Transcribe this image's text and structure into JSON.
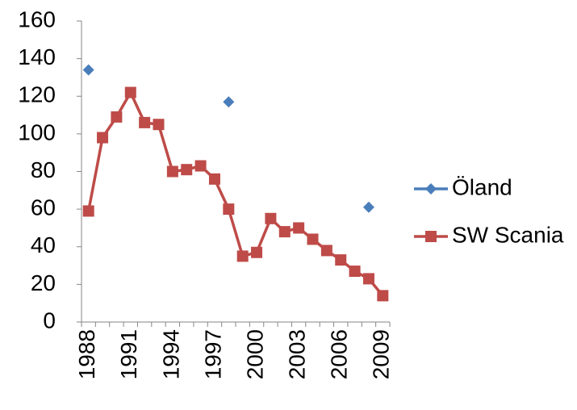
{
  "chart_data": {
    "type": "line",
    "categories": [
      "1988",
      null,
      null,
      "1991",
      null,
      null,
      "1994",
      null,
      null,
      "1997",
      null,
      null,
      "2000",
      null,
      null,
      "2003",
      null,
      null,
      "2006",
      null,
      null,
      "2009"
    ],
    "series": [
      {
        "name": "Öland",
        "color": "#4a7ebb",
        "marker": "diamond",
        "values": [
          134,
          null,
          null,
          null,
          null,
          null,
          null,
          null,
          null,
          null,
          117,
          null,
          null,
          null,
          null,
          null,
          null,
          null,
          null,
          null,
          61,
          null
        ]
      },
      {
        "name": "SW Scania",
        "color": "#be4b48",
        "marker": "square",
        "values": [
          59,
          98,
          109,
          122,
          106,
          105,
          80,
          81,
          83,
          76,
          60,
          35,
          37,
          55,
          48,
          50,
          44,
          38,
          33,
          27,
          23,
          14
        ]
      }
    ],
    "ylim": [
      0,
      160
    ],
    "yticks": [
      0,
      20,
      40,
      60,
      80,
      100,
      120,
      140,
      160
    ],
    "grid": false,
    "legend": "right"
  }
}
